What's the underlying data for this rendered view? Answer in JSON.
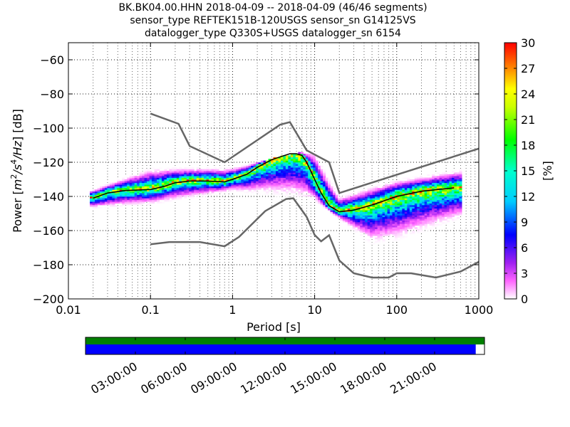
{
  "title": {
    "line1": "BK.BK04.00.HHN   2018-04-09 -- 2018-04-09  (46/46 segments)",
    "line2": "sensor_type REFTEK151B-120USGS sensor_sn G14125VS",
    "line3": "datalogger_type Q330S+USGS datalogger_sn 6154"
  },
  "colors": {
    "noise_model": "#666666",
    "median": "#000000",
    "coverage_green": "#008000",
    "coverage_blue": "#0000ff"
  },
  "chart_data": [
    {
      "type": "heatmap",
      "xlabel": "Period [s]",
      "ylabel": "Power [m²/s⁴/Hz] [dB]",
      "ylabel_parts": {
        "prefix": "Power [",
        "unit_base": "m",
        "unit_exp1": "2",
        "unit_mid": "/s",
        "unit_exp2": "4",
        "unit_end": "/Hz",
        "suffix": "] [dB]"
      },
      "x_scale": "log",
      "xlim": [
        0.01,
        1000
      ],
      "ylim": [
        -200,
        -50
      ],
      "x_ticks": [
        0.01,
        0.1,
        1,
        10,
        100,
        1000
      ],
      "x_tick_labels": [
        "0.01",
        "0.1",
        "1",
        "10",
        "100",
        "1000"
      ],
      "y_ticks": [
        -200,
        -180,
        -160,
        -140,
        -120,
        -100,
        -80,
        -60
      ],
      "y_tick_labels": [
        "−200",
        "−180",
        "−160",
        "−140",
        "−120",
        "−100",
        "−80",
        "−60"
      ],
      "grid": "dotted",
      "colorbar": {
        "label": "[%]",
        "range": [
          0,
          30
        ],
        "ticks": [
          0,
          3,
          6,
          9,
          12,
          15,
          18,
          21,
          24,
          27,
          30
        ],
        "tick_labels": [
          "0",
          "3",
          "6",
          "9",
          "12",
          "15",
          "18",
          "21",
          "24",
          "27",
          "30"
        ]
      },
      "series": [
        {
          "values_x": [
            0.1,
            0.22,
            0.3,
            0.8,
            3.8,
            5.0,
            8.0,
            15.0,
            20.0,
            1000.0
          ],
          "values_y": [
            -91.5,
            -97.5,
            -110.5,
            -120,
            -98,
            -96.5,
            -113,
            -120,
            -138,
            -112
          ]
        },
        {
          "values_x": [
            0.1,
            0.17,
            0.4,
            0.8,
            1.2,
            2.5,
            4.5,
            5.5,
            8.0,
            10.0,
            12.0,
            15.0,
            20.0,
            30.0,
            50.0,
            80.0,
            100.0,
            150.0,
            300.0,
            600.0,
            1000.0
          ],
          "values_y": [
            -168,
            -166.7,
            -166.7,
            -169.2,
            -163.7,
            -148.6,
            -141.5,
            -141.1,
            -152.0,
            -162.6,
            -166.3,
            -162.7,
            -177.5,
            -185.0,
            -187.5,
            -187.5,
            -185.0,
            -185.0,
            -187.5,
            -184.0,
            -178.3
          ]
        },
        {
          "values_x": [
            0.02,
            0.03,
            0.05,
            0.1,
            0.15,
            0.2,
            0.3,
            0.5,
            0.8,
            1.0,
            1.5,
            2.0,
            3.0,
            4.0,
            5.0,
            6.0,
            7.0,
            8.0,
            10.0,
            12.0,
            15.0,
            20.0,
            30.0,
            50.0,
            100.0,
            200.0,
            500.0
          ],
          "values_y": [
            -141,
            -138,
            -136.5,
            -136,
            -134,
            -132,
            -131,
            -131,
            -131.5,
            -130,
            -127,
            -123,
            -118.5,
            -116.5,
            -115,
            -115,
            -116,
            -120,
            -130,
            -138,
            -145.5,
            -149,
            -148,
            -145,
            -140,
            -137,
            -135
          ]
        }
      ],
      "spread": {
        "x": [
          0.02,
          0.1,
          1,
          10,
          20,
          50,
          100,
          600
        ],
        "low": [
          -148,
          -146,
          -138,
          -144,
          -154,
          -170,
          -168,
          -155
        ],
        "high": [
          -136,
          -123,
          -123,
          -113,
          -140,
          -134,
          -130,
          -124
        ]
      }
    },
    {
      "type": "bar",
      "title": "",
      "categories": [
        "03:00:00",
        "06:00:00",
        "09:00:00",
        "12:00:00",
        "15:00:00",
        "18:00:00",
        "21:00:00"
      ],
      "coverage_green": 1.0,
      "coverage_blue": 0.978
    }
  ]
}
